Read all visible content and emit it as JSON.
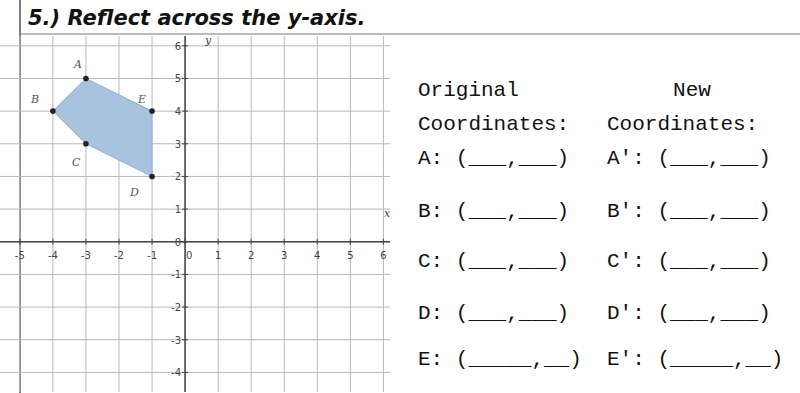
{
  "header": {
    "title": "5.) Reflect across the y-axis."
  },
  "chart_data": {
    "type": "scatter",
    "x": [
      -3,
      -4,
      -3,
      -1,
      -1
    ],
    "values": [
      5,
      4,
      3,
      2,
      4
    ],
    "labels": [
      "A",
      "B",
      "C",
      "D",
      "E"
    ],
    "x_label": "x",
    "y_label": "y",
    "xlim": [
      -5.6,
      6.2
    ],
    "ylim": [
      -4.6,
      6.3
    ],
    "xticks": [
      -5,
      -4,
      -3,
      -2,
      -1,
      0,
      1,
      2,
      3,
      4,
      5,
      6
    ],
    "yticks": [
      -4,
      -3,
      -2,
      -1,
      0,
      1,
      2,
      3,
      4,
      5,
      6
    ],
    "grid": true,
    "color": "#a9c3de",
    "marker": "circle"
  },
  "table": {
    "headers": [
      [
        "Original",
        "Coordinates:"
      ],
      [
        "New",
        "Coordinates:"
      ]
    ],
    "rows": [
      [
        "A: (___,___)",
        "A': (___,___)"
      ],
      [
        "B: (___,___)",
        "B': (___,___)"
      ],
      [
        "C: (___,___)",
        "C': (___,___)"
      ],
      [
        "D: (___,___)",
        "D': (___,___)"
      ],
      [
        "E: (_____,__)",
        "E': (_____,__)"
      ]
    ]
  }
}
